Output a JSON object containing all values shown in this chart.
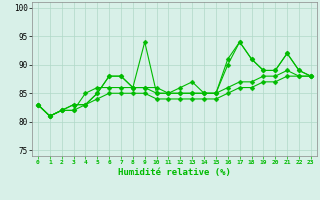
{
  "x": [
    0,
    1,
    2,
    3,
    4,
    5,
    6,
    7,
    8,
    9,
    10,
    11,
    12,
    13,
    14,
    15,
    16,
    17,
    18,
    19,
    20,
    21,
    22,
    23
  ],
  "lines": [
    [
      83,
      81,
      82,
      83,
      83,
      85,
      88,
      88,
      86,
      94,
      85,
      85,
      86,
      87,
      85,
      85,
      90,
      94,
      91,
      89,
      89,
      92,
      89,
      88
    ],
    [
      83,
      81,
      82,
      83,
      83,
      85,
      88,
      88,
      86,
      86,
      86,
      85,
      85,
      85,
      85,
      85,
      91,
      94,
      91,
      89,
      89,
      92,
      89,
      88
    ],
    [
      83,
      81,
      82,
      82,
      85,
      86,
      86,
      86,
      86,
      86,
      85,
      85,
      85,
      85,
      85,
      85,
      86,
      87,
      87,
      88,
      88,
      89,
      88,
      88
    ],
    [
      83,
      81,
      82,
      82,
      83,
      84,
      85,
      85,
      85,
      85,
      84,
      84,
      84,
      84,
      84,
      84,
      85,
      86,
      86,
      87,
      87,
      88,
      88,
      88
    ]
  ],
  "line_color": "#00bb00",
  "marker": "D",
  "marker_size": 2.5,
  "xlabel": "Humidité relative (%)",
  "ylim": [
    74,
    101
  ],
  "xlim": [
    -0.5,
    23.5
  ],
  "yticks": [
    75,
    80,
    85,
    90,
    95,
    100
  ],
  "xticks": [
    0,
    1,
    2,
    3,
    4,
    5,
    6,
    7,
    8,
    9,
    10,
    11,
    12,
    13,
    14,
    15,
    16,
    17,
    18,
    19,
    20,
    21,
    22,
    23
  ],
  "bg_color": "#d8f0e8",
  "grid_color": "#b0d8c8",
  "line_width": 0.8
}
